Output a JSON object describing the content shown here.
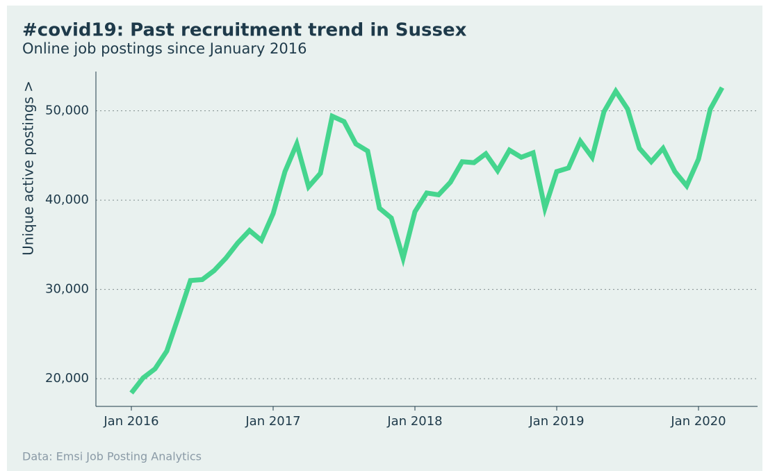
{
  "chart_data": {
    "type": "line",
    "title": "#covid19: Past recruitment trend in Sussex",
    "subtitle": "Online job postings since January 2016",
    "y_label": "Unique active postings >",
    "source": "Data: Emsi Job Posting Analytics",
    "x": [
      "2016-01",
      "2016-02",
      "2016-03",
      "2016-04",
      "2016-05",
      "2016-06",
      "2016-07",
      "2016-08",
      "2016-09",
      "2016-10",
      "2016-11",
      "2016-12",
      "2017-01",
      "2017-02",
      "2017-03",
      "2017-04",
      "2017-05",
      "2017-06",
      "2017-07",
      "2017-08",
      "2017-09",
      "2017-10",
      "2017-11",
      "2017-12",
      "2018-01",
      "2018-02",
      "2018-03",
      "2018-04",
      "2018-05",
      "2018-06",
      "2018-07",
      "2018-08",
      "2018-09",
      "2018-10",
      "2018-11",
      "2018-12",
      "2019-01",
      "2019-02",
      "2019-03",
      "2019-04",
      "2019-05",
      "2019-06",
      "2019-07",
      "2019-08",
      "2019-09",
      "2019-10",
      "2019-11",
      "2019-12",
      "2020-01",
      "2020-02",
      "2020-03"
    ],
    "series": [
      {
        "name": "Unique active postings",
        "color": "#45d58e",
        "values": [
          18400,
          20100,
          21100,
          23100,
          27000,
          31000,
          31100,
          32100,
          33500,
          35200,
          36600,
          35500,
          38500,
          43200,
          46300,
          41500,
          43000,
          49400,
          48800,
          46300,
          45500,
          39100,
          38000,
          33500,
          38700,
          40800,
          40600,
          42000,
          44300,
          44200,
          45200,
          43300,
          45600,
          44800,
          45300,
          39100,
          43200,
          43600,
          46600,
          44800,
          49900,
          52200,
          50200,
          45800,
          44300,
          45800,
          43200,
          41600,
          44600,
          50200,
          52600
        ]
      }
    ],
    "xlim": [
      "2015-10",
      "2020-06"
    ],
    "xticks": [
      {
        "value": "2016-01",
        "label": "Jan 2016"
      },
      {
        "value": "2017-01",
        "label": "Jan 2017"
      },
      {
        "value": "2018-01",
        "label": "Jan 2018"
      },
      {
        "value": "2019-01",
        "label": "Jan 2019"
      },
      {
        "value": "2020-01",
        "label": "Jan 2020"
      }
    ],
    "ylim": [
      16900,
      54400
    ],
    "yticks": [
      {
        "value": 20000,
        "label": "20,000"
      },
      {
        "value": 30000,
        "label": "30,000"
      },
      {
        "value": 40000,
        "label": "40,000"
      },
      {
        "value": 50000,
        "label": "50,000"
      }
    ],
    "grid": true
  }
}
